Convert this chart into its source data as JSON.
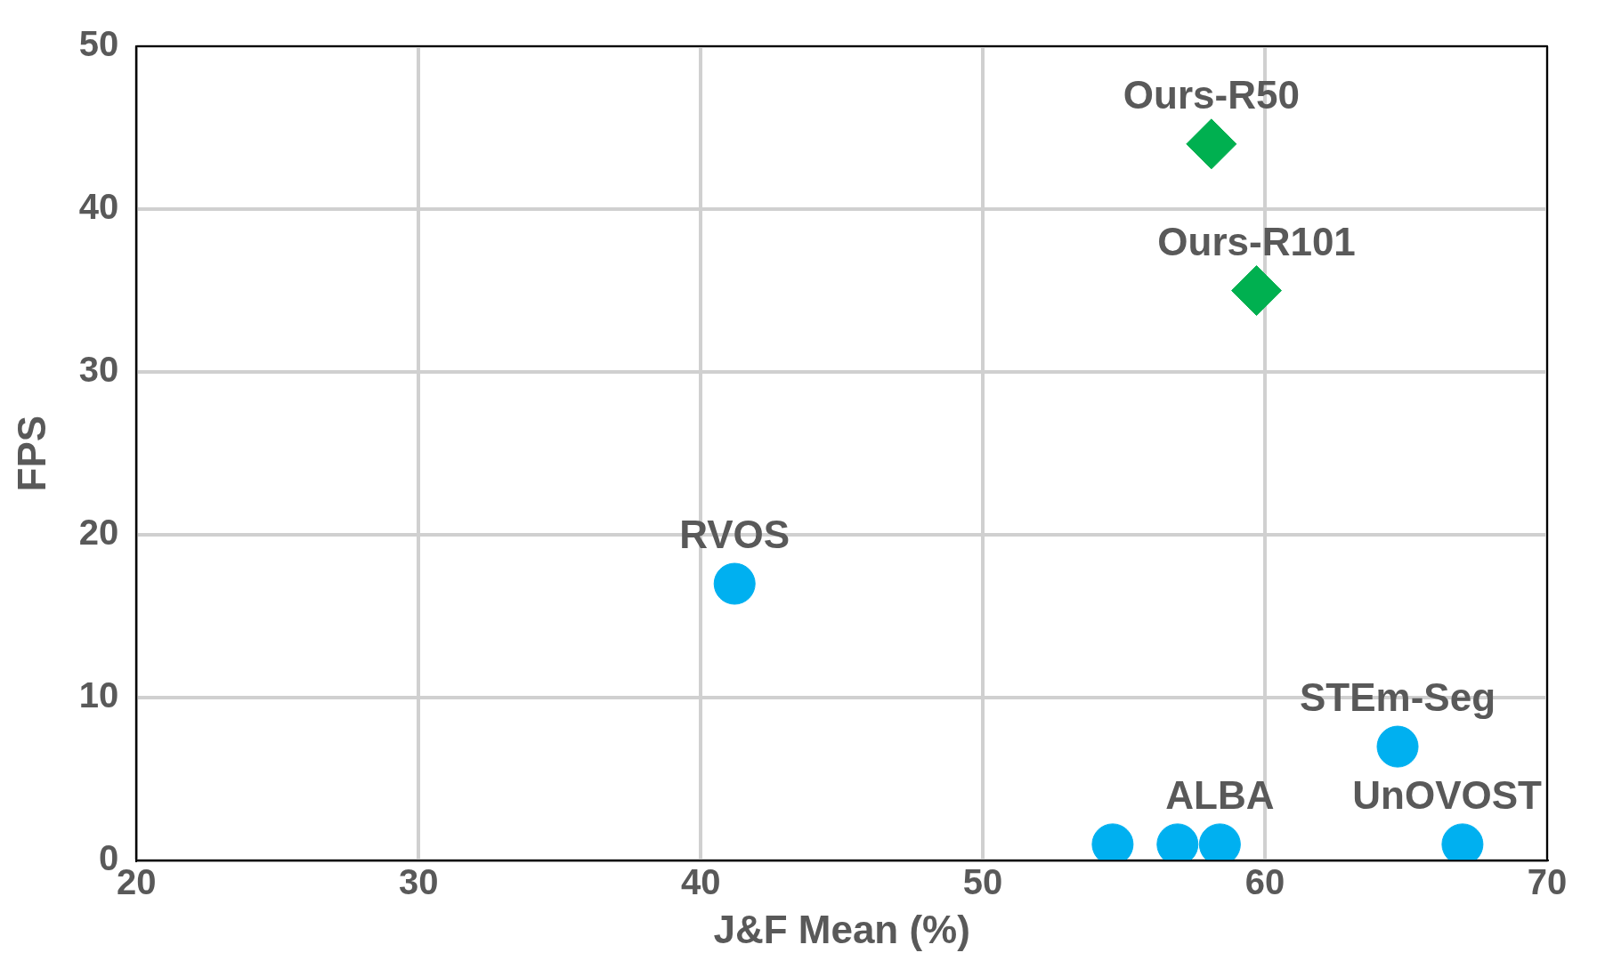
{
  "chart_data": {
    "type": "scatter",
    "xlabel": "J&F Mean (%)",
    "ylabel": "FPS",
    "xlim": [
      20,
      70
    ],
    "xticks": [
      20,
      30,
      40,
      50,
      60,
      70
    ],
    "ylim": [
      0,
      50
    ],
    "yticks": [
      0,
      10,
      20,
      30,
      40,
      50
    ],
    "grid": true,
    "legend": false,
    "series": [
      {
        "color": "#00b0f0",
        "marker": "circle",
        "x": [
          41.2,
          54.6,
          56.9,
          58.4,
          64.7,
          67.0
        ],
        "values": [
          17,
          1,
          1,
          1,
          7,
          1
        ]
      },
      {
        "color": "#00b050",
        "marker": "diamond",
        "x": [
          58.1,
          59.7
        ],
        "values": [
          44,
          35
        ]
      }
    ],
    "annotations": [
      {
        "text": "Ours-R50",
        "x": 58.1,
        "y": 44
      },
      {
        "text": "Ours-R101",
        "x": 59.7,
        "y": 35
      },
      {
        "text": "RVOS",
        "x": 41.2,
        "y": 17
      },
      {
        "text": "STEm-Seg",
        "x": 64.7,
        "y": 7
      },
      {
        "text": "ALBA",
        "x": 58.4,
        "y": 1
      },
      {
        "text": "UnOVOST",
        "x": 67.0,
        "y": 1
      }
    ]
  }
}
